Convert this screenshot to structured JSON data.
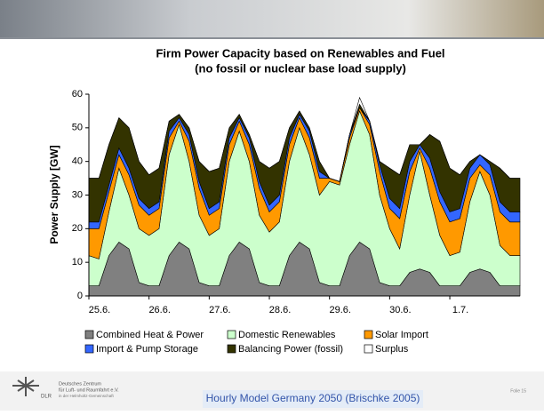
{
  "chart_data": {
    "type": "stacked_area",
    "title": [
      "Firm Power Capacity based on Renewables and Fuel",
      "(no fossil or nuclear base load supply)"
    ],
    "y_label": "Power Supply [GW]",
    "x": [
      0,
      4,
      8,
      12,
      16,
      20,
      24,
      28,
      32,
      36,
      40,
      44,
      48,
      52,
      56,
      60,
      64,
      68,
      72,
      76,
      80,
      84,
      88,
      92,
      96,
      100,
      104,
      108,
      112,
      116,
      120,
      124,
      128,
      132,
      136,
      140,
      144,
      148,
      152,
      156,
      160,
      164,
      168,
      172
    ],
    "xlim": [
      0,
      172
    ],
    "xticks": [
      {
        "value": 0,
        "label": "25.6."
      },
      {
        "value": 24,
        "label": "26.6."
      },
      {
        "value": 48,
        "label": "27.6."
      },
      {
        "value": 72,
        "label": "28.6."
      },
      {
        "value": 96,
        "label": "29.6."
      },
      {
        "value": 120,
        "label": "30.6."
      },
      {
        "value": 144,
        "label": "1.7."
      }
    ],
    "ylim": [
      0,
      60
    ],
    "yticks": [
      0,
      10,
      20,
      30,
      40,
      50,
      60
    ],
    "series": [
      {
        "name": "Combined Heat & Power",
        "color": "#808080",
        "values": [
          3,
          3,
          12,
          16,
          14,
          4,
          3,
          3,
          12,
          16,
          14,
          4,
          3,
          3,
          12,
          16,
          14,
          4,
          3,
          3,
          12,
          16,
          14,
          4,
          3,
          3,
          12,
          16,
          14,
          4,
          3,
          3,
          7,
          8,
          7,
          3,
          3,
          3,
          7,
          8,
          7,
          3,
          3,
          3
        ]
      },
      {
        "name": "Domestic Renewables",
        "color": "#ccffcc",
        "values": [
          9,
          8,
          13,
          22,
          16,
          16,
          15,
          17,
          30,
          35,
          26,
          20,
          15,
          17,
          28,
          33,
          26,
          20,
          16,
          19,
          28,
          34,
          28,
          26,
          31,
          30,
          33,
          39,
          34,
          26,
          17,
          11,
          23,
          35,
          23,
          15,
          9,
          10,
          21,
          29,
          23,
          12,
          9,
          9
        ]
      },
      {
        "name": "Solar Import",
        "color": "#ff9900",
        "values": [
          8,
          9,
          6,
          4,
          6,
          7,
          6,
          6,
          5,
          1,
          6,
          8,
          6,
          6,
          5,
          3,
          5,
          8,
          6,
          6,
          5,
          3,
          5,
          5,
          1,
          1,
          2,
          1,
          3,
          7,
          6,
          9,
          7,
          1,
          8,
          10,
          10,
          10,
          7,
          2,
          6,
          10,
          10,
          10
        ]
      },
      {
        "name": "Import & Pump Storage",
        "color": "#3366ff",
        "values": [
          2,
          2,
          2,
          2,
          2,
          2,
          2,
          2,
          2,
          1,
          2,
          2,
          2,
          2,
          2,
          1,
          2,
          2,
          2,
          2,
          2,
          1,
          2,
          2,
          0,
          0,
          1,
          0,
          1,
          2,
          3,
          3,
          3,
          1,
          3,
          3,
          3,
          3,
          3,
          3,
          3,
          3,
          3,
          3
        ]
      },
      {
        "name": "Balancing Power (fossil)",
        "color": "#333300",
        "values": [
          13,
          13,
          12,
          9,
          12,
          11,
          10,
          10,
          3,
          1,
          2,
          6,
          11,
          10,
          3,
          1,
          1,
          6,
          11,
          10,
          3,
          1,
          1,
          3,
          0,
          0,
          0,
          1,
          0,
          1,
          9,
          10,
          5,
          0,
          7,
          15,
          13,
          10,
          2,
          0,
          1,
          10,
          10,
          10
        ]
      },
      {
        "name": "Surplus",
        "color": "#ffffff",
        "values": [
          0,
          0,
          0,
          0,
          0,
          0,
          0,
          0,
          0,
          0,
          0,
          0,
          0,
          0,
          0,
          0,
          0,
          0,
          0,
          0,
          0,
          0,
          0,
          0,
          0,
          0,
          0,
          2,
          0,
          0,
          0,
          0,
          0,
          0,
          0,
          0,
          0,
          0,
          0,
          0,
          0,
          0,
          0,
          0
        ]
      }
    ]
  },
  "footer": {
    "caption": "Hourly Model Germany 2050 (Brischke 2005)",
    "page": "Folie 15",
    "logo": "DLR",
    "org": [
      "Deutsches Zentrum",
      "für Luft- und Raumfahrt e.V.",
      "in der Helmholtz-Gemeinschaft"
    ]
  }
}
